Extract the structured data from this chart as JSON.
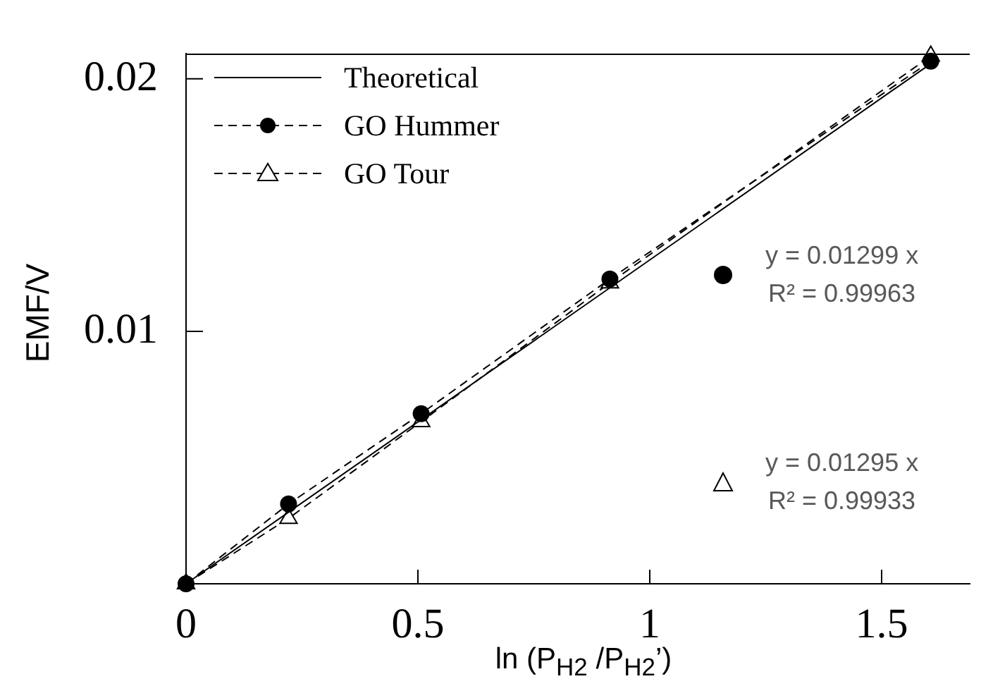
{
  "chart_data": {
    "type": "line",
    "xlabel": "ln (P$_{H2}$ /P$_{H2}$’)",
    "ylabel": "EMF/V",
    "xlim": [
      0,
      1.69
    ],
    "xticks": [
      0,
      0.5,
      1,
      1.5
    ],
    "ylim": [
      0,
      0.021
    ],
    "yticks": [
      {
        "value": 0,
        "label": null
      },
      0.01,
      0.02
    ],
    "grid": false,
    "legend": "top left",
    "series": [
      {
        "name": "Theoretical",
        "color": "#000000",
        "x": [
          0,
          1.606
        ],
        "values": [
          0,
          0.0206
        ],
        "line_style": "solid"
      },
      {
        "name": "GO Hummer",
        "color": "#000000",
        "x": [
          0,
          0.221,
          0.507,
          0.914,
          1.606
        ],
        "values": [
          0,
          0.00316,
          0.00674,
          0.01207,
          0.0207
        ],
        "marker": "circle",
        "line_style": "dashed"
      },
      {
        "name": "GO Tour",
        "color": "#000000",
        "x": [
          0,
          0.221,
          0.507,
          0.914,
          1.606
        ],
        "values": [
          0,
          0.00259,
          0.00642,
          0.01192,
          0.0209
        ],
        "marker": "triangle",
        "line_style": "dashed"
      }
    ],
    "annotations": [
      "y = 0.01299 x",
      "R² = 0.99963",
      "y = 0.01295 x",
      "R² = 0.99933"
    ]
  }
}
